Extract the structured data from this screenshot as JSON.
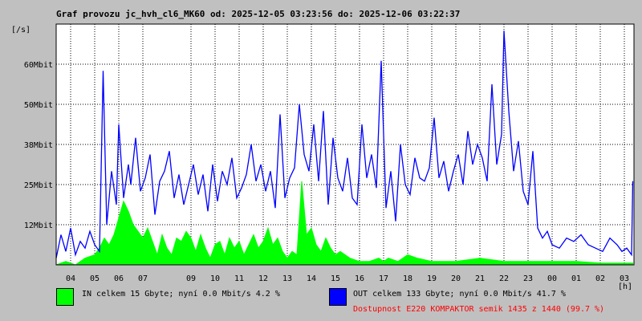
{
  "title": "Graf provozu jc_hvh_cl6_MK60 od: 2025-12-05 03:23:56 do: 2025-12-06 03:22:37",
  "chart_data": {
    "type": "area",
    "ylabel": "[/s]",
    "xunit": "[h]",
    "ylim": [
      0,
      72
    ],
    "y_ticks": [
      {
        "value": 12,
        "label": "12Mbit"
      },
      {
        "value": 24,
        "label": "25Mbit"
      },
      {
        "value": 36,
        "label": "38Mbit"
      },
      {
        "value": 48,
        "label": "50Mbit"
      },
      {
        "value": 60,
        "label": "60Mbit"
      }
    ],
    "x_ticks": [
      "04",
      "05",
      "06",
      "07",
      "09",
      "10",
      "11",
      "12",
      "13",
      "14",
      "15",
      "16",
      "17",
      "18",
      "19",
      "20",
      "21",
      "22",
      "23",
      "00",
      "01",
      "02",
      "03"
    ],
    "x_tick_hours": [
      4,
      5,
      6,
      7,
      9,
      10,
      11,
      12,
      13,
      14,
      15,
      16,
      17,
      18,
      19,
      20,
      21,
      22,
      23,
      24,
      25,
      26,
      27
    ],
    "grid": true,
    "series": [
      {
        "name": "IN",
        "color": "#00ff00",
        "x": [
          3.4,
          3.8,
          4.2,
          4.6,
          5.0,
          5.2,
          5.4,
          5.6,
          5.8,
          6.0,
          6.2,
          6.4,
          6.6,
          6.8,
          7.0,
          7.2,
          7.4,
          7.6,
          7.8,
          8.0,
          8.2,
          8.4,
          8.6,
          8.8,
          9.0,
          9.2,
          9.4,
          9.6,
          9.8,
          10.0,
          10.2,
          10.4,
          10.6,
          10.8,
          11.0,
          11.2,
          11.4,
          11.6,
          11.8,
          12.0,
          12.2,
          12.4,
          12.6,
          12.8,
          13.0,
          13.2,
          13.4,
          13.6,
          13.8,
          14.0,
          14.2,
          14.4,
          14.6,
          14.8,
          15.0,
          15.2,
          15.6,
          16.0,
          16.4,
          16.8,
          17.0,
          17.2,
          17.6,
          18.0,
          18.4,
          19.0,
          19.5,
          20.0,
          21.0,
          22.0,
          23.0,
          24.0,
          25.0,
          26.0,
          27.0,
          27.35
        ],
        "values": [
          0,
          1,
          0,
          2,
          3,
          5,
          8,
          6,
          9,
          14,
          19,
          16,
          12,
          10,
          8,
          11,
          7,
          3,
          9,
          5,
          3,
          8,
          7,
          10,
          8,
          4,
          9,
          5,
          2,
          6,
          7,
          3,
          8,
          5,
          7,
          3,
          6,
          9,
          5,
          7,
          11,
          6,
          8,
          4,
          2,
          4,
          3,
          25,
          9,
          11,
          6,
          4,
          8,
          5,
          3,
          4,
          2,
          1,
          1,
          2,
          1,
          2,
          1,
          3,
          2,
          1,
          1,
          1,
          2,
          1,
          1,
          1,
          1,
          0.5,
          0.5,
          0.5
        ]
      },
      {
        "name": "OUT",
        "color": "#0000ff",
        "x": [
          3.4,
          3.6,
          3.8,
          4.0,
          4.2,
          4.4,
          4.6,
          4.8,
          5.0,
          5.2,
          5.35,
          5.5,
          5.7,
          5.9,
          6.0,
          6.2,
          6.4,
          6.5,
          6.7,
          6.9,
          7.1,
          7.3,
          7.5,
          7.7,
          7.9,
          8.1,
          8.3,
          8.5,
          8.7,
          8.9,
          9.1,
          9.3,
          9.5,
          9.7,
          9.9,
          10.1,
          10.3,
          10.5,
          10.7,
          10.9,
          11.1,
          11.3,
          11.5,
          11.7,
          11.9,
          12.1,
          12.3,
          12.5,
          12.7,
          12.9,
          13.1,
          13.3,
          13.5,
          13.7,
          13.9,
          14.1,
          14.3,
          14.5,
          14.7,
          14.9,
          15.1,
          15.3,
          15.5,
          15.7,
          15.9,
          16.1,
          16.3,
          16.5,
          16.7,
          16.9,
          17.1,
          17.3,
          17.5,
          17.7,
          17.9,
          18.1,
          18.3,
          18.5,
          18.7,
          18.9,
          19.1,
          19.3,
          19.5,
          19.7,
          19.9,
          20.1,
          20.3,
          20.5,
          20.7,
          20.9,
          21.1,
          21.3,
          21.5,
          21.7,
          21.9,
          22.0,
          22.2,
          22.4,
          22.6,
          22.8,
          23.0,
          23.2,
          23.4,
          23.6,
          23.8,
          24.0,
          24.3,
          24.6,
          24.9,
          25.2,
          25.5,
          25.8,
          26.1,
          26.4,
          26.7,
          26.9,
          27.1,
          27.3,
          27.35
        ],
        "values": [
          2,
          9,
          4,
          11,
          3,
          7,
          5,
          10,
          6,
          4,
          58,
          12,
          28,
          18,
          42,
          20,
          30,
          24,
          38,
          22,
          26,
          33,
          15,
          25,
          28,
          34,
          20,
          27,
          18,
          24,
          30,
          21,
          27,
          16,
          30,
          19,
          28,
          24,
          32,
          20,
          23,
          27,
          36,
          25,
          30,
          22,
          28,
          17,
          45,
          20,
          26,
          29,
          48,
          33,
          28,
          42,
          25,
          46,
          18,
          38,
          26,
          22,
          32,
          20,
          18,
          42,
          26,
          33,
          23,
          61,
          17,
          28,
          13,
          36,
          24,
          21,
          32,
          26,
          25,
          29,
          44,
          26,
          31,
          22,
          28,
          33,
          24,
          40,
          30,
          36,
          32,
          25,
          54,
          30,
          39,
          70,
          46,
          28,
          37,
          22,
          18,
          34,
          11,
          8,
          10,
          6,
          5,
          8,
          7,
          9,
          6,
          5,
          4,
          8,
          6,
          4,
          5,
          3,
          25
        ]
      }
    ]
  },
  "legend": {
    "in_label": "IN celkem 15 Gbyte; nyní   0.0 Mbit/s 4.2 %",
    "out_label": "OUT celkem 133 Gbyte; nyní   0.0 Mbit/s 41.7 %",
    "in_color": "#00ff00",
    "out_color": "#0000ff"
  },
  "availability": {
    "text": "Dostupnost E220 KOMPAKTOR semik 1435 z 1440 (99.7 %)",
    "color": "#ff0000"
  }
}
